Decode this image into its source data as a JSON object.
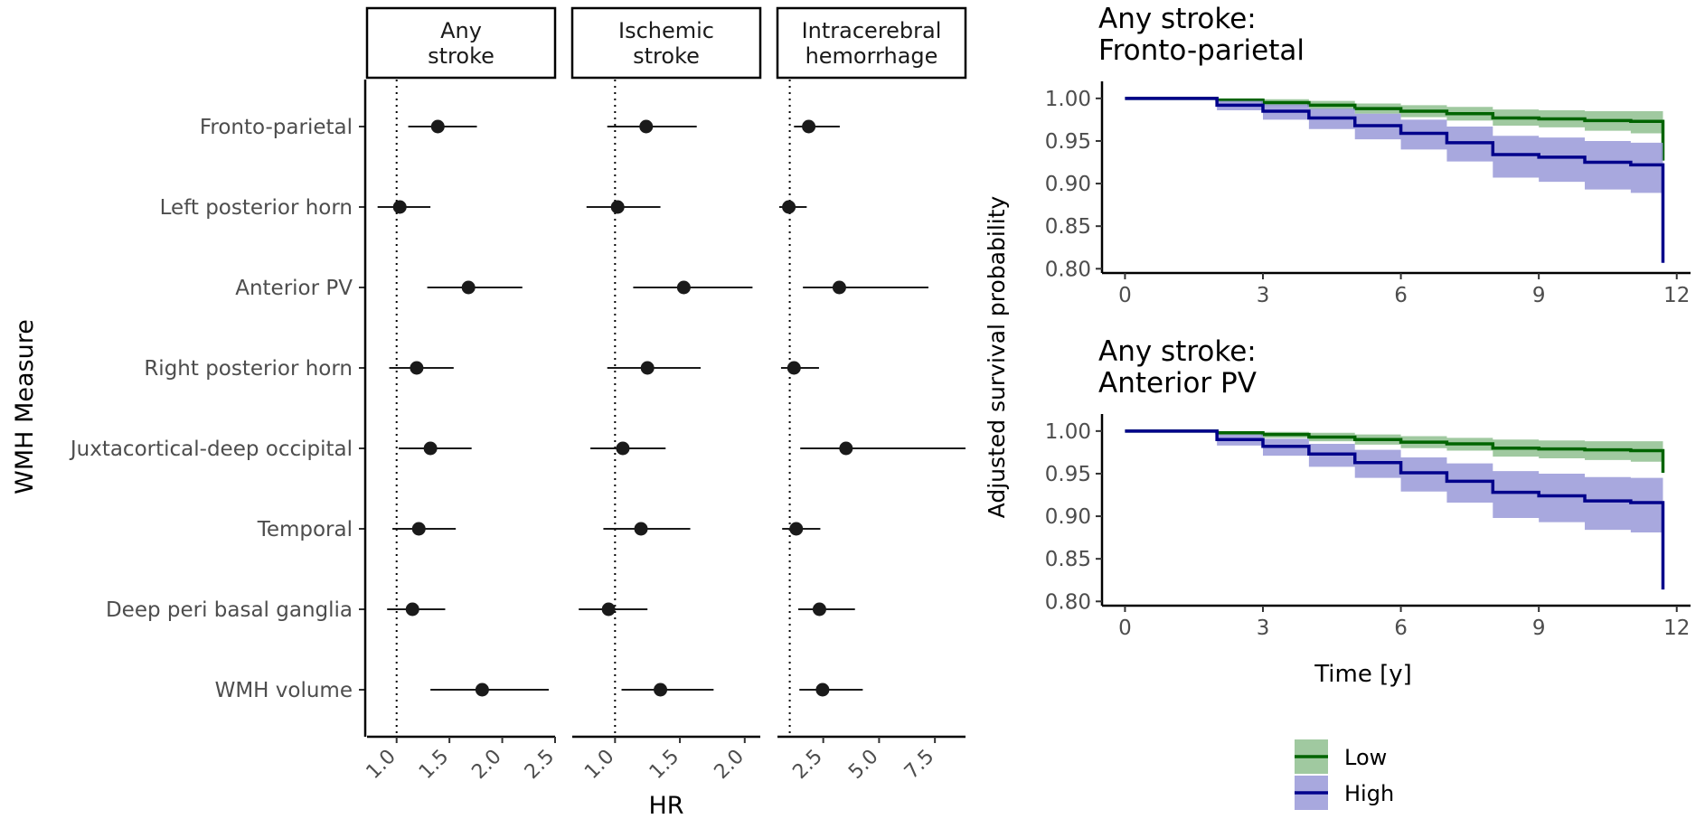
{
  "forest": {
    "y_axis_title": "WMH Measure",
    "x_axis_title": "HR",
    "measures": [
      "Fronto-parietal",
      "Left posterior horn",
      "Anterior PV",
      "Right posterior horn",
      "Juxtacortical-deep occipital",
      "Temporal",
      "Deep peri basal ganglia",
      "WMH volume"
    ],
    "reference_line": 1.0
  },
  "survival": {
    "y_axis_title": "Adjusted survival probability",
    "x_axis_title": "Time [y]",
    "legend": [
      {
        "label": "Low",
        "line_color": "#006400",
        "fill_color": "#8fbf8f"
      },
      {
        "label": "High",
        "line_color": "#00008b",
        "fill_color": "#9999d8"
      }
    ]
  },
  "chart_data": [
    {
      "type": "scatter",
      "facet": [
        "Any",
        "stroke"
      ],
      "xlim": [
        0.72,
        2.5
      ],
      "x_ticks": [
        1.0,
        1.5,
        2.0,
        2.5
      ],
      "x_tick_labels": [
        "1.0",
        "1.5",
        "2.0",
        "2.5"
      ],
      "points": [
        {
          "measure": "Fronto-parietal",
          "hr": 1.39,
          "lo": 1.11,
          "hi": 1.76
        },
        {
          "measure": "Left posterior horn",
          "hr": 1.03,
          "lo": 0.82,
          "hi": 1.32
        },
        {
          "measure": "Anterior PV",
          "hr": 1.68,
          "lo": 1.29,
          "hi": 2.19
        },
        {
          "measure": "Right posterior horn",
          "hr": 1.19,
          "lo": 0.93,
          "hi": 1.54
        },
        {
          "measure": "Juxtacortical-deep occipital",
          "hr": 1.32,
          "lo": 1.02,
          "hi": 1.71
        },
        {
          "measure": "Temporal",
          "hr": 1.21,
          "lo": 0.96,
          "hi": 1.56
        },
        {
          "measure": "Deep peri basal ganglia",
          "hr": 1.15,
          "lo": 0.91,
          "hi": 1.46
        },
        {
          "measure": "WMH volume",
          "hr": 1.81,
          "lo": 1.32,
          "hi": 2.44
        }
      ]
    },
    {
      "type": "scatter",
      "facet": [
        "Ischemic",
        "stroke"
      ],
      "xlim": [
        0.67,
        2.12
      ],
      "x_ticks": [
        1.0,
        1.5,
        2.0
      ],
      "x_tick_labels": [
        "1.0",
        "1.5",
        "2.0"
      ],
      "points": [
        {
          "measure": "Fronto-parietal",
          "hr": 1.24,
          "lo": 0.94,
          "hi": 1.63
        },
        {
          "measure": "Left posterior horn",
          "hr": 1.02,
          "lo": 0.78,
          "hi": 1.35
        },
        {
          "measure": "Anterior PV",
          "hr": 1.53,
          "lo": 1.14,
          "hi": 2.06
        },
        {
          "measure": "Right posterior horn",
          "hr": 1.25,
          "lo": 0.94,
          "hi": 1.66
        },
        {
          "measure": "Juxtacortical-deep occipital",
          "hr": 1.06,
          "lo": 0.81,
          "hi": 1.39
        },
        {
          "measure": "Temporal",
          "hr": 1.2,
          "lo": 0.91,
          "hi": 1.58
        },
        {
          "measure": "Deep peri basal ganglia",
          "hr": 0.95,
          "lo": 0.72,
          "hi": 1.25
        },
        {
          "measure": "WMH volume",
          "hr": 1.35,
          "lo": 1.05,
          "hi": 1.76
        }
      ]
    },
    {
      "type": "scatter",
      "facet": [
        "Intracerebral",
        "hemorrhage"
      ],
      "xlim": [
        0.45,
        8.87
      ],
      "x_ticks": [
        2.5,
        5.0,
        7.5
      ],
      "x_tick_labels": [
        "2.5",
        "5.0",
        "7.5"
      ],
      "points": [
        {
          "measure": "Fronto-parietal",
          "hr": 1.85,
          "lo": 1.19,
          "hi": 3.24
        },
        {
          "measure": "Left posterior horn",
          "hr": 0.96,
          "lo": 0.53,
          "hi": 1.76
        },
        {
          "measure": "Anterior PV",
          "hr": 3.22,
          "lo": 1.59,
          "hi": 7.21
        },
        {
          "measure": "Right posterior horn",
          "hr": 1.19,
          "lo": 0.61,
          "hi": 2.31
        },
        {
          "measure": "Juxtacortical-deep occipital",
          "hr": 3.52,
          "lo": 1.47,
          "hi": 8.87
        },
        {
          "measure": "Temporal",
          "hr": 1.29,
          "lo": 0.66,
          "hi": 2.37
        },
        {
          "measure": "Deep peri basal ganglia",
          "hr": 2.33,
          "lo": 1.38,
          "hi": 3.92
        },
        {
          "measure": "WMH volume",
          "hr": 2.47,
          "lo": 1.43,
          "hi": 4.27
        }
      ]
    },
    {
      "type": "line",
      "title": [
        "Any stroke:",
        "Fronto-parietal"
      ],
      "xlabel": "Time [y]",
      "ylabel": "Adjusted survival probability",
      "xlim": [
        -0.5,
        12.3
      ],
      "ylim": [
        0.795,
        1.02
      ],
      "x_ticks": [
        0,
        3,
        6,
        9,
        12
      ],
      "y_ticks": [
        1.0,
        0.95,
        0.9,
        0.85,
        0.8
      ],
      "y_tick_labels": [
        "1.00",
        "0.95",
        "0.90",
        "0.85",
        "0.80"
      ],
      "series": [
        {
          "name": "Low",
          "x": [
            0,
            1.2,
            2,
            3,
            4,
            5,
            6,
            7,
            8,
            9,
            10,
            11,
            11.7
          ],
          "y": [
            1.0,
            1.0,
            0.998,
            0.995,
            0.992,
            0.988,
            0.985,
            0.982,
            0.977,
            0.976,
            0.974,
            0.973,
            0.972
          ],
          "lower": [
            1.0,
            1.0,
            0.996,
            0.991,
            0.987,
            0.982,
            0.978,
            0.974,
            0.968,
            0.966,
            0.962,
            0.959,
            0.957
          ],
          "upper": [
            1.0,
            1.0,
            1.0,
            0.999,
            0.997,
            0.994,
            0.992,
            0.99,
            0.987,
            0.986,
            0.985,
            0.985,
            0.985
          ],
          "end_drop": 0.927
        },
        {
          "name": "High",
          "x": [
            0,
            1.2,
            2,
            3,
            4,
            5,
            6,
            7,
            8,
            9,
            10,
            11,
            11.7
          ],
          "y": [
            1.0,
            1.0,
            0.992,
            0.985,
            0.977,
            0.968,
            0.959,
            0.948,
            0.934,
            0.931,
            0.925,
            0.922,
            0.921
          ],
          "lower": [
            1.0,
            1.0,
            0.986,
            0.975,
            0.964,
            0.952,
            0.94,
            0.926,
            0.907,
            0.902,
            0.893,
            0.889,
            0.887
          ],
          "upper": [
            1.0,
            1.0,
            0.997,
            0.993,
            0.988,
            0.982,
            0.975,
            0.967,
            0.956,
            0.954,
            0.95,
            0.948,
            0.947
          ],
          "end_drop": 0.807
        }
      ]
    },
    {
      "type": "line",
      "title": [
        "Any stroke:",
        "Anterior PV"
      ],
      "xlabel": "Time [y]",
      "ylabel": "Adjusted survival probability",
      "xlim": [
        -0.5,
        12.3
      ],
      "ylim": [
        0.795,
        1.02
      ],
      "x_ticks": [
        0,
        3,
        6,
        9,
        12
      ],
      "y_ticks": [
        1.0,
        0.95,
        0.9,
        0.85,
        0.8
      ],
      "y_tick_labels": [
        "1.00",
        "0.95",
        "0.90",
        "0.85",
        "0.80"
      ],
      "series": [
        {
          "name": "Low",
          "x": [
            0,
            0.9,
            2,
            3,
            4,
            5,
            6,
            7,
            8,
            9,
            10,
            11,
            11.7
          ],
          "y": [
            1.0,
            1.0,
            0.998,
            0.996,
            0.993,
            0.99,
            0.987,
            0.985,
            0.98,
            0.979,
            0.978,
            0.977,
            0.976
          ],
          "lower": [
            1.0,
            1.0,
            0.995,
            0.992,
            0.988,
            0.984,
            0.98,
            0.977,
            0.97,
            0.968,
            0.966,
            0.964,
            0.963
          ],
          "upper": [
            1.0,
            1.0,
            1.0,
            0.999,
            0.998,
            0.996,
            0.994,
            0.992,
            0.99,
            0.989,
            0.988,
            0.988,
            0.988
          ],
          "end_drop": 0.951
        },
        {
          "name": "High",
          "x": [
            0,
            0.9,
            2,
            3,
            4,
            5,
            6,
            7,
            8,
            9,
            10,
            11,
            11.7
          ],
          "y": [
            1.0,
            1.0,
            0.99,
            0.982,
            0.973,
            0.963,
            0.951,
            0.941,
            0.928,
            0.924,
            0.918,
            0.916,
            0.915
          ],
          "lower": [
            1.0,
            1.0,
            0.983,
            0.971,
            0.958,
            0.945,
            0.929,
            0.916,
            0.898,
            0.893,
            0.884,
            0.881,
            0.879
          ],
          "upper": [
            1.0,
            1.0,
            0.996,
            0.991,
            0.985,
            0.978,
            0.969,
            0.962,
            0.953,
            0.95,
            0.946,
            0.945,
            0.944
          ],
          "end_drop": 0.814
        }
      ]
    }
  ]
}
